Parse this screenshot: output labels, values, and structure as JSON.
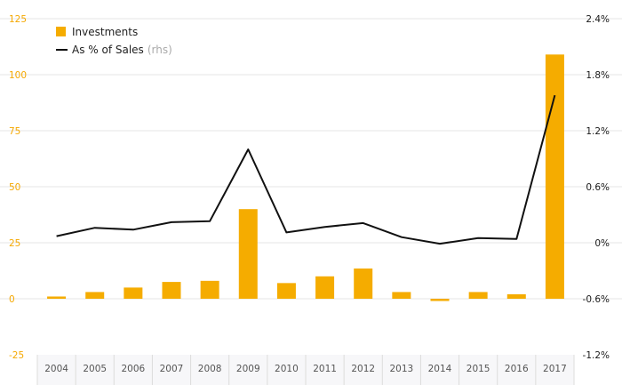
{
  "chart_data": {
    "type": "bar",
    "categories": [
      "2004",
      "2005",
      "2006",
      "2007",
      "2008",
      "2009",
      "2010",
      "2011",
      "2012",
      "2013",
      "2014",
      "2015",
      "2016",
      "2017"
    ],
    "series": [
      {
        "name": "Investments",
        "type": "bar",
        "axis": "left",
        "color": "#f5ac00",
        "values": [
          1,
          3,
          5,
          7.5,
          8,
          40,
          7,
          10,
          13.5,
          3,
          -1,
          3,
          2,
          109
        ]
      },
      {
        "name": "As % of Sales",
        "type": "line",
        "axis": "right",
        "color": "#111111",
        "values": [
          0.07,
          0.16,
          0.14,
          0.22,
          0.23,
          1.0,
          0.11,
          0.17,
          0.21,
          0.06,
          -0.01,
          0.05,
          0.04,
          1.58
        ]
      }
    ],
    "legend": {
      "investments": "Investments",
      "ratio": "As % of Sales",
      "ratio_suffix": "(rhs)"
    },
    "y_left": {
      "lim": [
        -25,
        125
      ],
      "ticks": [
        "-25",
        "0",
        "25",
        "50",
        "75",
        "100",
        "125"
      ]
    },
    "y_right": {
      "lim": [
        -1.2,
        2.4
      ],
      "ticks": [
        "-1.2%",
        "-0.6%",
        "0%",
        "0.6%",
        "1.2%",
        "1.8%",
        "2.4%"
      ]
    },
    "grid": true,
    "colors": {
      "bar": "#f5ac00",
      "line": "#111111",
      "grid": "#e6e6e6",
      "left_axis_text": "#f5a800",
      "band": "#f7f7f9"
    }
  }
}
